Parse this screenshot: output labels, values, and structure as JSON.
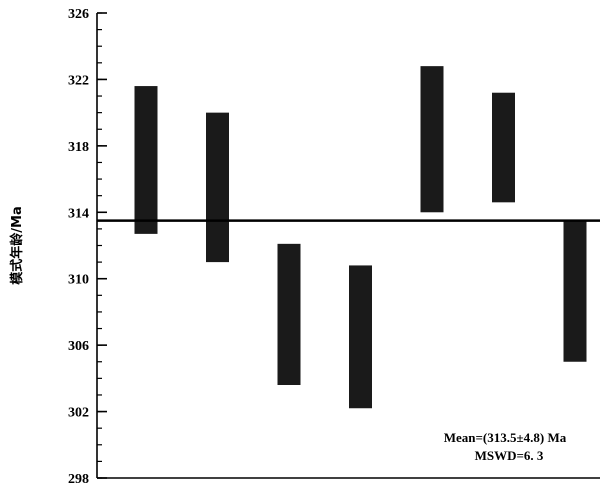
{
  "chart_data": {
    "type": "bar",
    "chart_kind": "age-range bars (floating bars) with weighted mean line",
    "ylabel": "模式年龄/Ma",
    "xlabel": "",
    "title": "",
    "ylim": [
      298,
      326
    ],
    "y_ticks": [
      298,
      302,
      306,
      310,
      314,
      318,
      322,
      326
    ],
    "y_minor_step": 1,
    "grid": false,
    "colors": {
      "bar": "#1a1a1a",
      "axis": "#000000",
      "mean_line": "#000000"
    },
    "bars": [
      {
        "low": 312.7,
        "high": 321.6
      },
      {
        "low": 311.0,
        "high": 320.0
      },
      {
        "low": 303.6,
        "high": 312.1
      },
      {
        "low": 302.2,
        "high": 310.8
      },
      {
        "low": 314.0,
        "high": 322.8
      },
      {
        "low": 314.6,
        "high": 321.2
      },
      {
        "low": 305.0,
        "high": 313.5
      }
    ],
    "mean_value": 313.5,
    "annotations": [
      "Mean=(313.5±4.8) Ma",
      "MSWD=6. 3"
    ]
  }
}
